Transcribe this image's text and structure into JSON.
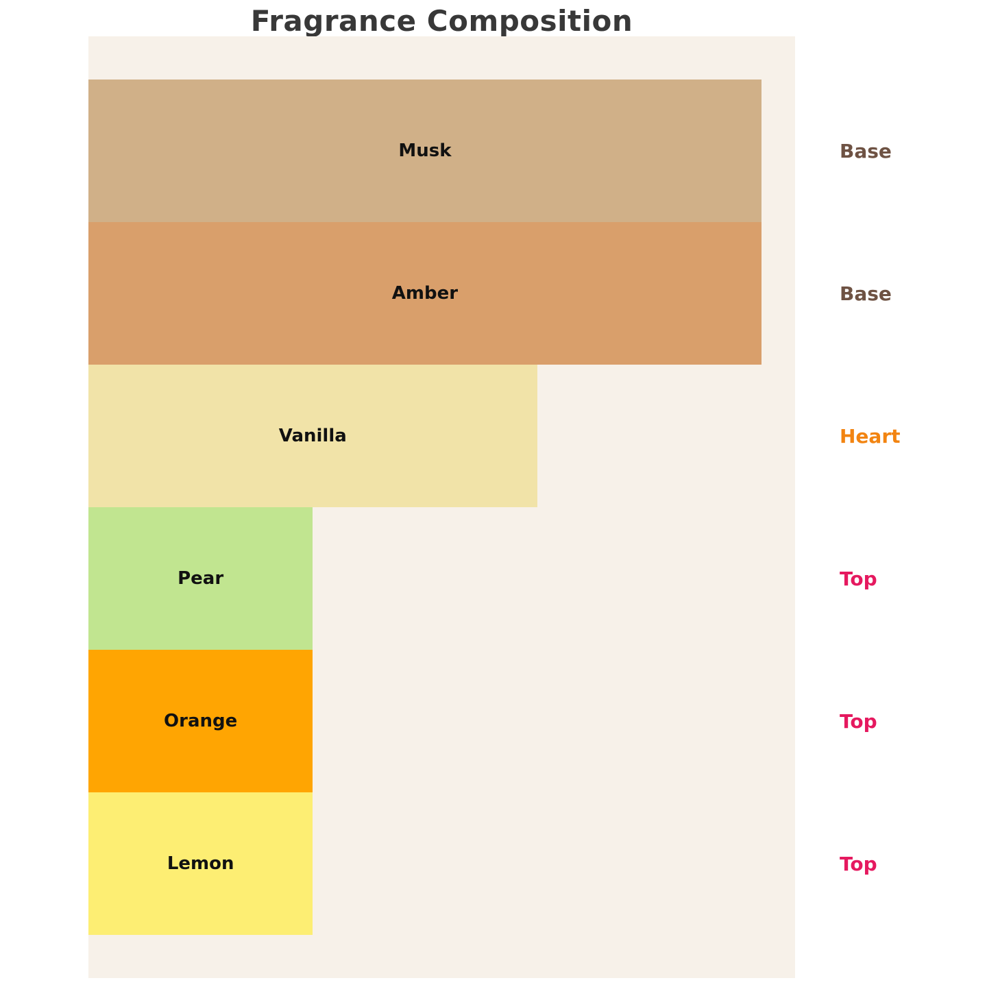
{
  "page": {
    "background": "#FFFFFF"
  },
  "chart_data": {
    "type": "bar",
    "orientation": "horizontal",
    "title": "Fragrance Composition",
    "title_color": "#383838",
    "background": "#F7F1E9",
    "categories": [
      "Musk",
      "Amber",
      "Vanilla",
      "Pear",
      "Orange",
      "Lemon"
    ],
    "values": [
      30,
      30,
      20,
      10,
      10,
      10
    ],
    "xlim": [
      0,
      31.5
    ],
    "bar_colors": [
      "#D0B088",
      "#D99F6B",
      "#F1E3A8",
      "#C1E590",
      "#FFA502",
      "#FDEE73"
    ],
    "bar_label_color": "#111111",
    "annotations": [
      {
        "text": "Base",
        "color": "#6E5243"
      },
      {
        "text": "Base",
        "color": "#6E5243"
      },
      {
        "text": "Heart",
        "color": "#F28411"
      },
      {
        "text": "Top",
        "color": "#E5195F"
      },
      {
        "text": "Top",
        "color": "#E5195F"
      },
      {
        "text": "Top",
        "color": "#E5195F"
      }
    ],
    "grid": false,
    "legend": "none",
    "axis_ticks": "none"
  }
}
